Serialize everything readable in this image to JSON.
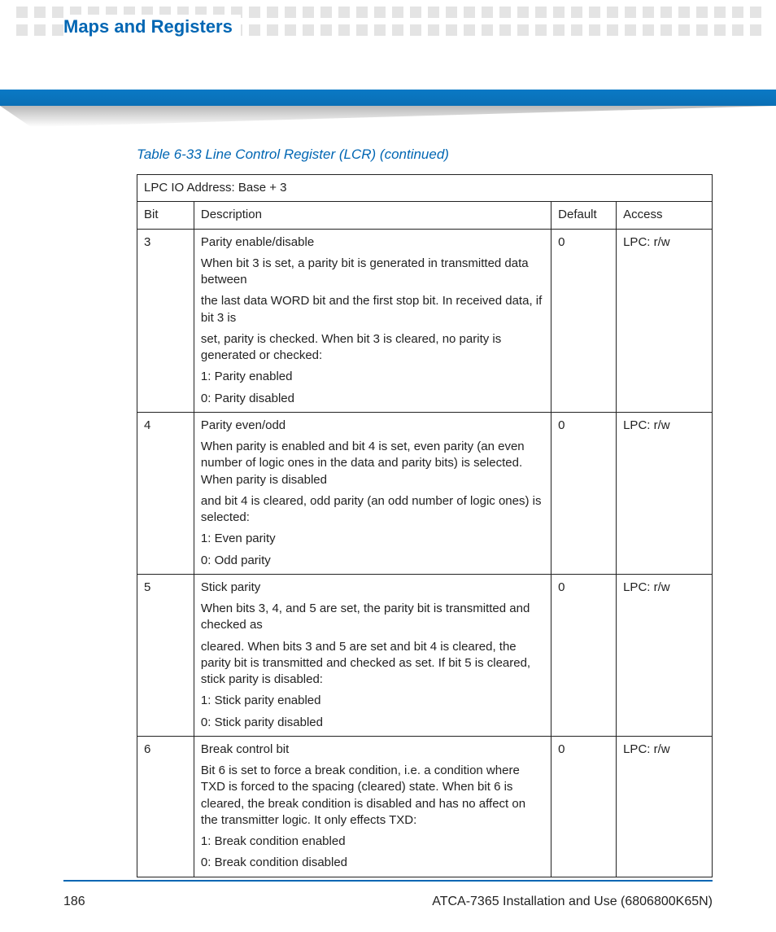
{
  "header": {
    "section_title": "Maps and Registers",
    "title_color": "#0066b3",
    "bar_color": "#0a73bb",
    "square_color": "#e4e4e4"
  },
  "table": {
    "caption": "Table 6-33 Line Control Register (LCR) (continued)",
    "caption_color": "#0066b3",
    "address_line": "LPC IO Address: Base + 3",
    "columns": {
      "bit": "Bit",
      "description": "Description",
      "default": "Default",
      "access": "Access"
    },
    "rows": [
      {
        "bit": "3",
        "default": "0",
        "access": "LPC: r/w",
        "desc": [
          "Parity enable/disable",
          "When bit 3 is set, a parity bit is generated in transmitted data between",
          "the last data WORD bit and the first stop bit. In received data, if bit 3 is",
          "set, parity is checked. When bit 3 is cleared, no parity is generated or checked:",
          "1: Parity enabled",
          "0: Parity disabled"
        ]
      },
      {
        "bit": "4",
        "default": "0",
        "access": "LPC: r/w",
        "desc": [
          "Parity even/odd",
          "When parity is enabled and bit 4 is set, even parity (an even number of logic ones in the data and parity bits) is selected. When parity is disabled",
          "and bit 4 is cleared, odd parity (an odd number of logic ones) is selected:",
          "1: Even parity",
          "0: Odd parity"
        ]
      },
      {
        "bit": "5",
        "default": "0",
        "access": "LPC: r/w",
        "desc": [
          "Stick parity",
          "When bits 3, 4, and 5 are set, the parity bit is transmitted and checked as",
          "cleared. When bits 3 and 5 are set and bit 4 is cleared, the parity bit is transmitted and checked as set. If bit 5 is cleared, stick parity is disabled:",
          "1: Stick parity enabled",
          "0: Stick parity disabled"
        ]
      },
      {
        "bit": "6",
        "default": "0",
        "access": "LPC: r/w",
        "desc": [
          "Break control bit",
          "Bit 6 is set to force a break condition, i.e. a condition where TXD is forced to the spacing (cleared) state. When bit 6 is cleared, the break condition is disabled and has no affect on the transmitter logic. It only effects TXD:",
          "1: Break condition enabled",
          "0: Break condition disabled"
        ]
      }
    ]
  },
  "footer": {
    "page_number": "186",
    "doc_title": "ATCA-7365 Installation and Use (6806800K65N)",
    "rule_color": "#0066b3"
  }
}
